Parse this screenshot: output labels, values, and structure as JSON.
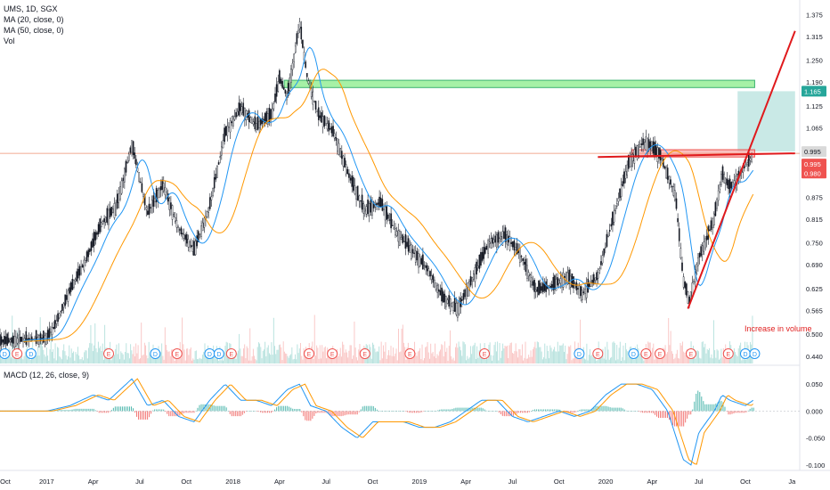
{
  "legend": {
    "symbol": "UMS, 1D, SGX",
    "ma20": "MA (20, close, 0)",
    "ma50": "MA (50, close, 0)",
    "vol": "Vol"
  },
  "macd_label": "MACD (12, 26, close, 9)",
  "annotation_volume": "Increase in volume",
  "colors": {
    "up": "#26a69a",
    "down": "#ef5350",
    "ma20": "#2196f3",
    "ma50": "#ff9800",
    "trend": "#e0191c",
    "resistance": "#90ee90",
    "target": "#b2dfdb",
    "last_line": "#ef8f6f"
  },
  "chart_data": {
    "type": "candlestick",
    "price_axis": {
      "range": [
        0.42,
        1.4
      ],
      "ticks": [
        "1.375",
        "1.315",
        "1.250",
        "1.190",
        "1.125",
        "1.065",
        "0.995",
        "0.935",
        "0.875",
        "0.815",
        "0.750",
        "0.690",
        "0.625",
        "0.565",
        "0.500",
        "0.440"
      ]
    },
    "price_tags": [
      {
        "value": "1.165",
        "color": "#26a69a"
      },
      {
        "value": "0.995",
        "color": "#d9d9d9"
      },
      {
        "value": "0.995",
        "color": "#ef5350"
      },
      {
        "value": "0.980",
        "color": "#ef5350"
      }
    ],
    "macd_axis": {
      "range": [
        -0.11,
        0.075
      ],
      "ticks": [
        "0.050",
        "0.000",
        "-0.050",
        "-0.100"
      ]
    },
    "x_ticks": [
      "Oct",
      "2017",
      "Apr",
      "Jul",
      "Oct",
      "2018",
      "Apr",
      "Jul",
      "Oct",
      "2019",
      "Apr",
      "Jul",
      "Oct",
      "2020",
      "Apr",
      "Jul",
      "Oct",
      "Ja"
    ],
    "x_range_months": [
      0,
      51.5
    ],
    "price_path": [
      [
        0,
        0.48
      ],
      [
        3,
        0.49
      ],
      [
        3.5,
        0.52
      ],
      [
        4.5,
        0.62
      ],
      [
        5.5,
        0.7
      ],
      [
        6.5,
        0.8
      ],
      [
        7.5,
        0.85
      ],
      [
        8.5,
        1.02
      ],
      [
        9.5,
        0.83
      ],
      [
        10.5,
        0.91
      ],
      [
        11.5,
        0.79
      ],
      [
        12.5,
        0.73
      ],
      [
        13.5,
        0.85
      ],
      [
        14.5,
        1.05
      ],
      [
        15.5,
        1.12
      ],
      [
        16.5,
        1.07
      ],
      [
        17.5,
        1.1
      ],
      [
        18,
        1.2
      ],
      [
        18.5,
        1.15
      ],
      [
        19.3,
        1.35
      ],
      [
        19.8,
        1.2
      ],
      [
        20.5,
        1.1
      ],
      [
        21.5,
        1.05
      ],
      [
        22.5,
        0.93
      ],
      [
        23.5,
        0.84
      ],
      [
        24.5,
        0.86
      ],
      [
        25.5,
        0.78
      ],
      [
        26.5,
        0.73
      ],
      [
        27.5,
        0.68
      ],
      [
        28.5,
        0.6
      ],
      [
        29.5,
        0.57
      ],
      [
        30.5,
        0.66
      ],
      [
        31.5,
        0.75
      ],
      [
        32.5,
        0.77
      ],
      [
        33.5,
        0.72
      ],
      [
        34.5,
        0.62
      ],
      [
        35.5,
        0.63
      ],
      [
        36.5,
        0.66
      ],
      [
        37.5,
        0.61
      ],
      [
        38.5,
        0.66
      ],
      [
        39.5,
        0.82
      ],
      [
        40.5,
        0.97
      ],
      [
        41.5,
        1.03
      ],
      [
        42.5,
        0.99
      ],
      [
        43.5,
        0.88
      ],
      [
        44,
        0.65
      ],
      [
        44.4,
        0.59
      ],
      [
        45,
        0.71
      ],
      [
        45.5,
        0.76
      ],
      [
        46,
        0.82
      ],
      [
        46.5,
        0.94
      ],
      [
        47,
        0.9
      ],
      [
        47.5,
        0.93
      ],
      [
        48,
        0.96
      ],
      [
        48.5,
        0.99
      ]
    ],
    "macd_path": [
      [
        0,
        0.0
      ],
      [
        3,
        0.0
      ],
      [
        4.5,
        0.01
      ],
      [
        6,
        0.03
      ],
      [
        7,
        0.02
      ],
      [
        8.5,
        0.06
      ],
      [
        9.5,
        0.01
      ],
      [
        10.5,
        0.02
      ],
      [
        11.5,
        -0.01
      ],
      [
        12.5,
        -0.02
      ],
      [
        13.5,
        0.02
      ],
      [
        14.5,
        0.05
      ],
      [
        15.5,
        0.02
      ],
      [
        16.5,
        0.02
      ],
      [
        17.5,
        0.01
      ],
      [
        18.5,
        0.04
      ],
      [
        19.3,
        0.05
      ],
      [
        20,
        0.01
      ],
      [
        21,
        0.0
      ],
      [
        22,
        -0.03
      ],
      [
        23,
        -0.05
      ],
      [
        24,
        -0.02
      ],
      [
        25,
        -0.02
      ],
      [
        26,
        -0.02
      ],
      [
        27,
        -0.03
      ],
      [
        28,
        -0.03
      ],
      [
        29,
        -0.02
      ],
      [
        30,
        0.0
      ],
      [
        31,
        0.02
      ],
      [
        32,
        0.02
      ],
      [
        33,
        -0.01
      ],
      [
        34,
        -0.02
      ],
      [
        35,
        -0.01
      ],
      [
        36,
        0.0
      ],
      [
        37,
        -0.01
      ],
      [
        38,
        0.0
      ],
      [
        39,
        0.03
      ],
      [
        40,
        0.05
      ],
      [
        41,
        0.05
      ],
      [
        42,
        0.04
      ],
      [
        43,
        0.0
      ],
      [
        44,
        -0.09
      ],
      [
        44.5,
        -0.1
      ],
      [
        45,
        -0.04
      ],
      [
        46,
        0.0
      ],
      [
        46.5,
        0.03
      ],
      [
        47,
        0.02
      ],
      [
        48,
        0.01
      ],
      [
        48.5,
        0.02
      ]
    ],
    "resistance_zone": {
      "x": [
        18.3,
        48.6
      ],
      "y": [
        1.175,
        1.195
      ]
    },
    "support_zone": {
      "x": [
        40.7,
        48.6
      ],
      "y": [
        0.985,
        1.005
      ]
    },
    "target_box": {
      "x": [
        47.5,
        51.2
      ],
      "y": [
        1.0,
        1.165
      ]
    },
    "trendline_support": {
      "from": [
        44.3,
        0.57
      ],
      "to": [
        51.2,
        1.33
      ]
    },
    "trendline_breakout": {
      "from": [
        38.5,
        0.985
      ],
      "to": [
        51.2,
        0.995
      ]
    },
    "horizontal_last": 0.995
  }
}
